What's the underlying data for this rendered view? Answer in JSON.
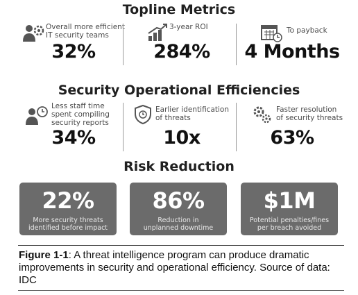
{
  "sections": {
    "topline": "Topline Metrics",
    "efficiency": "Security Operational Efficiencies",
    "risk": "Risk Reduction"
  },
  "topline": [
    {
      "icon": "team-gear-icon",
      "desc1": "Overall more efficient",
      "desc2": "IT security teams",
      "value": "32%"
    },
    {
      "icon": "growth-chart-icon",
      "desc1": "3-year ROI",
      "desc2": "",
      "value": "284%"
    },
    {
      "icon": "calendar-clock-icon",
      "desc1": "To payback",
      "desc2": "",
      "value": "4 Months"
    }
  ],
  "efficiency": [
    {
      "icon": "person-clock-icon",
      "desc1": "Less staff time",
      "desc2": "spent compiling",
      "desc3": "security reports",
      "value": "34%"
    },
    {
      "icon": "shield-clock-icon",
      "desc1": "Earlier identification",
      "desc2": "of threats",
      "value": "10x"
    },
    {
      "icon": "gears-icon",
      "desc1": "Faster resolution",
      "desc2": "of security threats",
      "value": "63%"
    }
  ],
  "risk": [
    {
      "value": "22%",
      "desc1": "More security threats",
      "desc2": "identified before impact"
    },
    {
      "value": "86%",
      "desc1": "Reduction in",
      "desc2": "unplanned downtime"
    },
    {
      "value": "$1M",
      "desc1": "Potential penalties/fines",
      "desc2": "per breach avoided"
    }
  ],
  "caption": {
    "label": "Figure 1-1",
    "text": ": A threat intelligence program can produce dramatic improvements in security and operational efficiency. Source of data: IDC"
  }
}
